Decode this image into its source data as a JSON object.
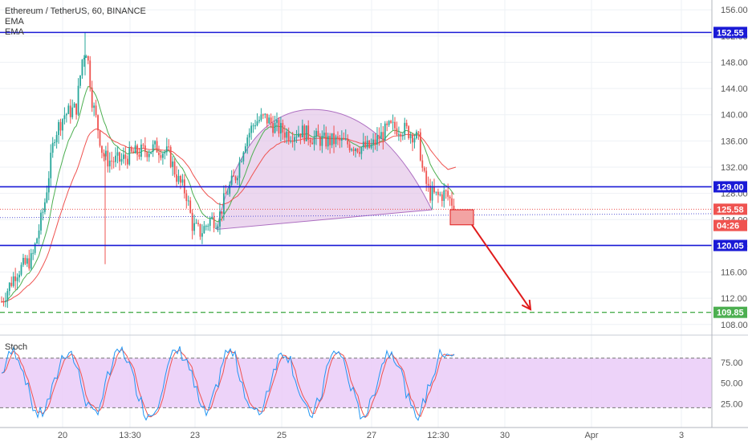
{
  "legend": {
    "symbol": "Ethereum / TetherUS, 60, BINANCE",
    "ema1": "EMA",
    "ema2": "EMA"
  },
  "stoch": {
    "label": "Stoch",
    "ticks": [
      "75.00",
      "50.00",
      "25.00"
    ],
    "fill_color": "#e8c8f8",
    "k_color": "#2196f3",
    "d_color": "#ef5350"
  },
  "chart_data": {
    "type": "candlestick",
    "price_ticks": [
      "156.00",
      "152.00",
      "148.00",
      "144.00",
      "140.00",
      "136.00",
      "132.00",
      "128.00",
      "124.00",
      "120.00",
      "116.00",
      "112.00",
      "108.00"
    ],
    "x_ticks": [
      "20",
      "13:30",
      "23",
      "25",
      "27",
      "12:30",
      "30",
      "Apr",
      "3"
    ],
    "ylim": [
      106.5,
      157.5
    ],
    "horizontal_levels": [
      {
        "value": 152.55,
        "label": "152.55",
        "color": "#1a1ad6",
        "style": "solid"
      },
      {
        "value": 129.0,
        "label": "129.00",
        "color": "#1a1ad6",
        "style": "solid"
      },
      {
        "value": 120.05,
        "label": "120.05",
        "color": "#1a1ad6",
        "style": "solid"
      },
      {
        "value": 109.85,
        "label": "109.85",
        "color": "#4caf50",
        "style": "dashed"
      }
    ],
    "price_markers": [
      {
        "value": 125.58,
        "label": "125.58",
        "color": "#ef5350"
      },
      {
        "value": 123.1,
        "label": "04:26",
        "color": "#ef5350"
      }
    ],
    "bull_color": "#26a69a",
    "bear_color": "#ef5350",
    "ema_fast_color": "#4caf50",
    "ema_slow_color": "#ef5350",
    "pattern_fill": "#dcb6e2",
    "arrow_color": "#e01b1b"
  }
}
